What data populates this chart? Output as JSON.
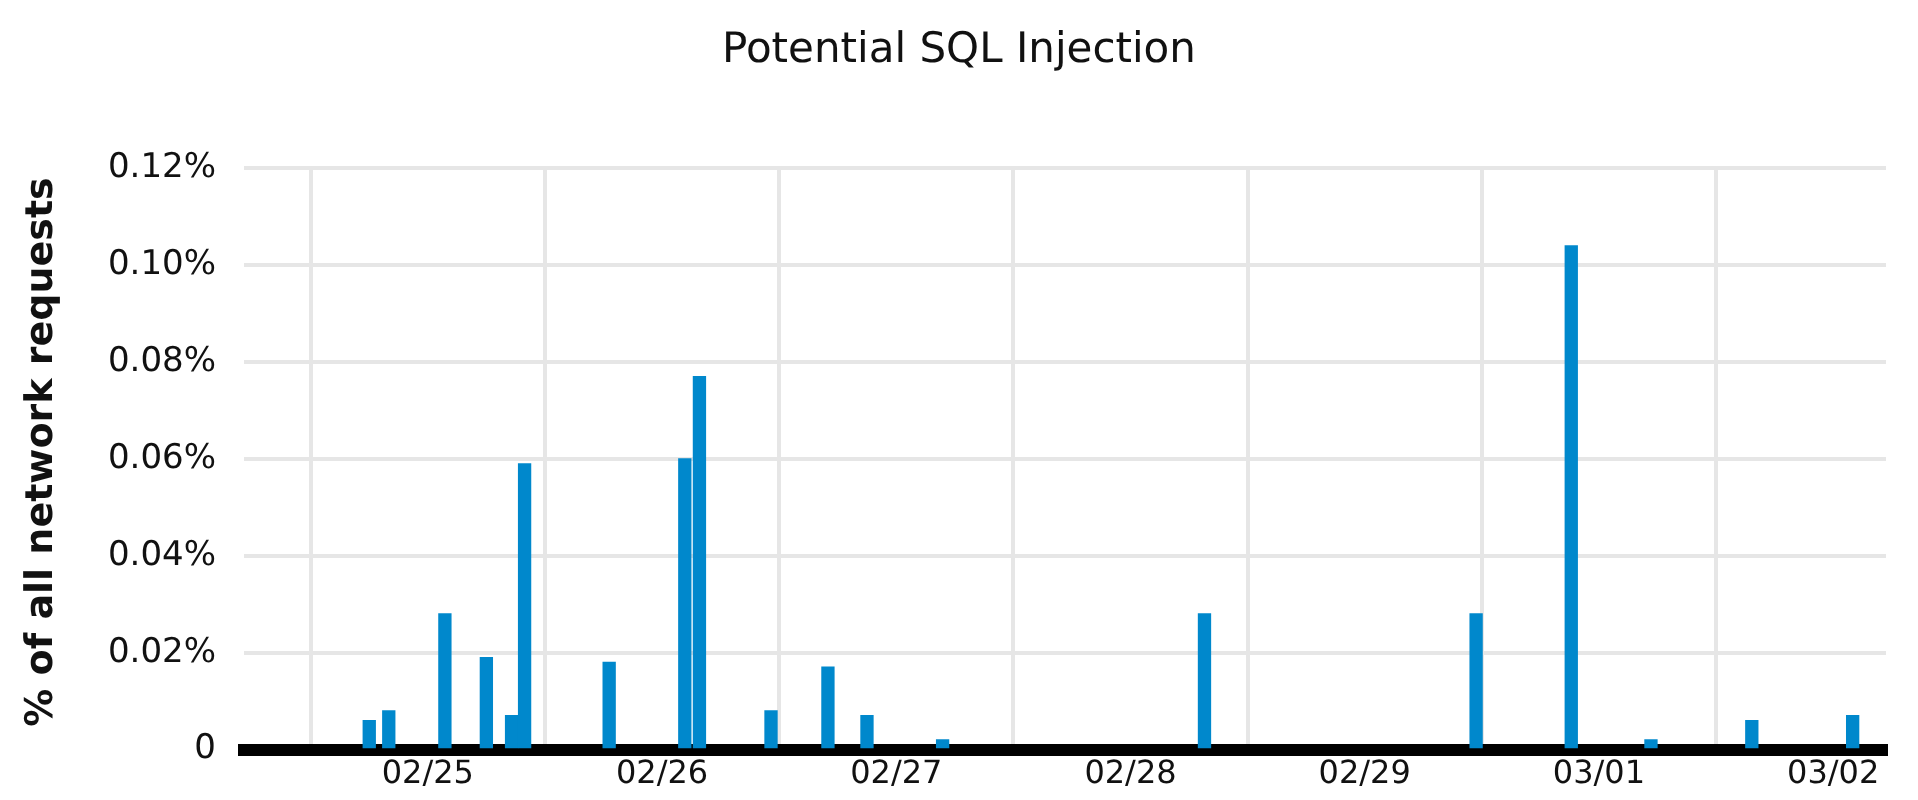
{
  "chart_data": {
    "type": "bar",
    "title": "Potential SQL Injection",
    "ylabel": "% of all network requests",
    "x": [
      "--02-24T18:00",
      "--02-24T20:00",
      "--02-25T01:45",
      "--02-25T06:00",
      "--02-25T08:35",
      "--02-25T09:55",
      "--02-25T18:35",
      "--02-26T02:20",
      "--02-26T03:50",
      "--02-26T11:10",
      "--02-26T17:00",
      "--02-26T21:00",
      "--02-27T04:45",
      "--02-28T07:35",
      "--02-29T11:25",
      "--02-29T21:10",
      "--03-01T05:20",
      "--03-01T15:40",
      "--03-02T02:00"
    ],
    "values": [
      0.006,
      0.008,
      0.028,
      0.019,
      0.007,
      0.059,
      0.018,
      0.06,
      0.077,
      0.008,
      0.017,
      0.007,
      0.002,
      0.028,
      0.028,
      0.104,
      0.002,
      0.006,
      0.007
    ],
    "color": "#0088cc",
    "xlim": [
      "--02-24T05:10",
      "--03-02T05:25"
    ],
    "xticks": [
      {
        "value": "--02-25",
        "label": "02/25"
      },
      {
        "value": "--02-26",
        "label": "02/26"
      },
      {
        "value": "--02-27",
        "label": "02/27"
      },
      {
        "value": "--02-28",
        "label": "02/28"
      },
      {
        "value": "--02-29",
        "label": "02/29"
      },
      {
        "value": "--03-01",
        "label": "03/01"
      },
      {
        "value": "--03-02",
        "label": "03/02"
      }
    ],
    "ylim": [
      0,
      0.12
    ],
    "yticks": [
      {
        "value": 0,
        "label": "0"
      },
      {
        "value": 0.02,
        "label": "0.02%"
      },
      {
        "value": 0.04,
        "label": "0.04%"
      },
      {
        "value": 0.06,
        "label": "0.06%"
      },
      {
        "value": 0.08,
        "label": "0.08%"
      },
      {
        "value": 0.1,
        "label": "0.10%"
      },
      {
        "value": 0.12,
        "label": "0.12%"
      }
    ],
    "grid": true,
    "legend": false
  }
}
